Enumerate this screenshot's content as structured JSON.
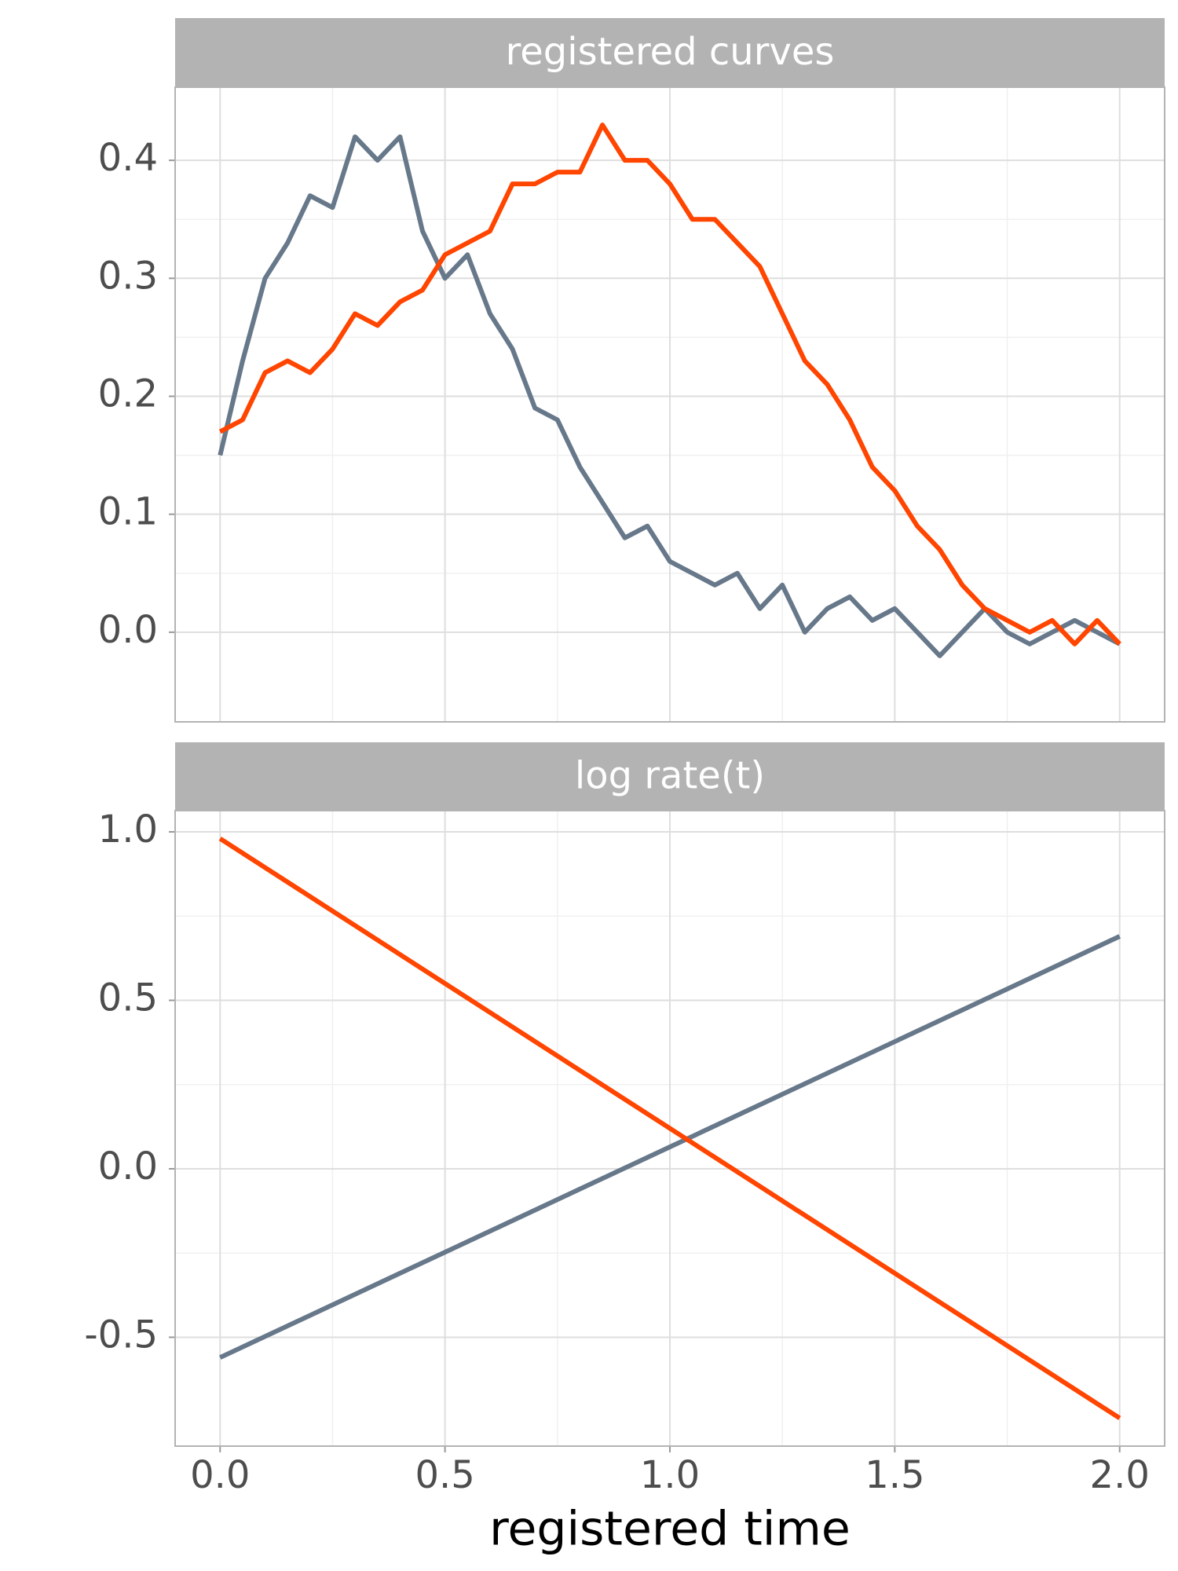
{
  "chart_data": [
    {
      "type": "line",
      "title": "registered curves",
      "x": [
        0,
        0.05,
        0.1,
        0.15,
        0.2,
        0.25,
        0.3,
        0.35,
        0.4,
        0.45,
        0.5,
        0.55,
        0.6,
        0.65,
        0.7,
        0.75,
        0.8,
        0.85,
        0.9,
        0.95,
        1.0,
        1.05,
        1.1,
        1.15,
        1.2,
        1.25,
        1.3,
        1.35,
        1.4,
        1.45,
        1.5,
        1.55,
        1.6,
        1.65,
        1.7,
        1.75,
        1.8,
        1.85,
        1.9,
        1.95,
        2.0
      ],
      "series": [
        {
          "color": "#67788a",
          "values": [
            0.15,
            0.23,
            0.3,
            0.33,
            0.37,
            0.36,
            0.42,
            0.4,
            0.42,
            0.34,
            0.3,
            0.32,
            0.27,
            0.24,
            0.19,
            0.18,
            0.14,
            0.11,
            0.08,
            0.09,
            0.06,
            0.05,
            0.04,
            0.05,
            0.02,
            0.04,
            0.0,
            0.02,
            0.03,
            0.01,
            0.02,
            0.0,
            -0.02,
            0.0,
            0.02,
            0.0,
            -0.01,
            0.0,
            0.01,
            0.0,
            -0.01
          ]
        },
        {
          "color": "#ff4500",
          "values": [
            0.17,
            0.18,
            0.22,
            0.23,
            0.22,
            0.24,
            0.27,
            0.26,
            0.28,
            0.29,
            0.32,
            0.33,
            0.34,
            0.38,
            0.38,
            0.39,
            0.39,
            0.43,
            0.4,
            0.4,
            0.38,
            0.35,
            0.35,
            0.33,
            0.31,
            0.27,
            0.23,
            0.21,
            0.18,
            0.14,
            0.12,
            0.09,
            0.07,
            0.04,
            0.02,
            0.01,
            0.0,
            0.01,
            -0.01,
            0.01,
            -0.01
          ]
        }
      ],
      "xlim": [
        -0.1,
        2.1
      ],
      "ylim": [
        -0.076,
        0.462
      ],
      "xticks": [
        {
          "value": 0,
          "label": "0.0"
        },
        0.5,
        {
          "value": 1,
          "label": "1.0"
        },
        1.5,
        {
          "value": 2,
          "label": "2.0"
        }
      ],
      "yticks": [
        {
          "value": 0,
          "label": "0.0"
        },
        0.1,
        0.2,
        0.3,
        0.4
      ],
      "grid": true
    },
    {
      "type": "line",
      "title": "log rate(t)",
      "x_label": "registered time",
      "x": [
        0,
        2
      ],
      "series": [
        {
          "color": "#67788a",
          "values": [
            -0.56,
            0.69
          ]
        },
        {
          "color": "#ff4500",
          "values": [
            0.98,
            -0.74
          ]
        }
      ],
      "xlim": [
        -0.1,
        2.1
      ],
      "ylim": [
        -0.823,
        1.063
      ],
      "xticks": [
        {
          "value": 0,
          "label": "0.0"
        },
        0.5,
        {
          "value": 1,
          "label": "1.0"
        },
        1.5,
        {
          "value": 2,
          "label": "2.0"
        }
      ],
      "yticks": [
        {
          "value": -0.5,
          "label": "-0.5"
        },
        {
          "value": 0,
          "label": "0.0"
        },
        0.5,
        {
          "value": 1,
          "label": "1.0"
        }
      ],
      "grid": true
    }
  ]
}
